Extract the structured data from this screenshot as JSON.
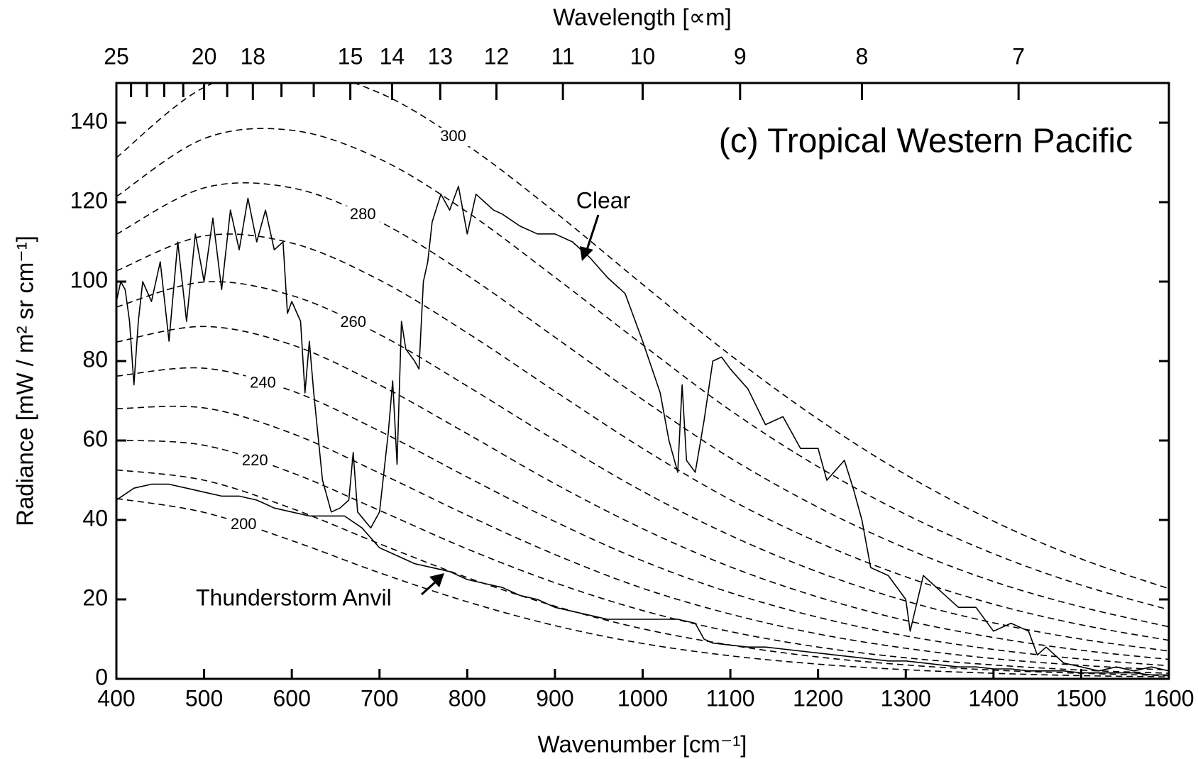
{
  "chart_data": {
    "type": "line",
    "title": "(c) Tropical Western Pacific",
    "x_label": "Wavenumber [cm⁻¹]",
    "y_label": "Radiance [mW / m² sr cm⁻¹]",
    "x2_label": "Wavelength [∝m]",
    "xlim": [
      400,
      1600
    ],
    "ylim": [
      0,
      150
    ],
    "xticks": [
      400,
      500,
      600,
      700,
      800,
      900,
      1000,
      1100,
      1200,
      1300,
      1400,
      1500,
      1600
    ],
    "yticks": [
      0,
      20,
      40,
      60,
      80,
      100,
      120,
      140
    ],
    "x2ticks": [
      {
        "value": 400,
        "label": "25"
      },
      {
        "value": 500,
        "label": "20"
      },
      {
        "value": 555.6,
        "label": "18"
      },
      {
        "value": 666.7,
        "label": "15"
      },
      {
        "value": 714.3,
        "label": "14"
      },
      {
        "value": 769.2,
        "label": "13"
      },
      {
        "value": 833.3,
        "label": "12"
      },
      {
        "value": 909.1,
        "label": "11"
      },
      {
        "value": 1000,
        "label": "10"
      },
      {
        "value": 1111.1,
        "label": "9"
      },
      {
        "value": 1250,
        "label": "8"
      },
      {
        "value": 1428.6,
        "label": "7"
      }
    ],
    "x2minorticks": [
      416.7,
      434.8,
      454.5,
      476.2,
      526.3,
      588.2,
      625
    ],
    "series": [
      {
        "name": "Clear",
        "color": "#000000",
        "x": [
          400,
          405,
          410,
          415,
          420,
          425,
          430,
          440,
          450,
          460,
          470,
          480,
          490,
          500,
          510,
          520,
          530,
          540,
          550,
          560,
          570,
          580,
          590,
          595,
          600,
          610,
          615,
          620,
          625,
          635,
          645,
          655,
          665,
          670,
          675,
          690,
          700,
          710,
          715,
          720,
          725,
          730,
          740,
          745,
          750,
          755,
          760,
          770,
          780,
          790,
          800,
          810,
          820,
          830,
          840,
          860,
          880,
          900,
          920,
          940,
          960,
          980,
          1000,
          1020,
          1030,
          1040,
          1045,
          1050,
          1060,
          1070,
          1080,
          1090,
          1100,
          1120,
          1140,
          1160,
          1180,
          1200,
          1210,
          1230,
          1240,
          1250,
          1260,
          1280,
          1300,
          1305,
          1320,
          1340,
          1360,
          1380,
          1400,
          1420,
          1440,
          1450,
          1460,
          1480,
          1500,
          1520,
          1540,
          1560,
          1580,
          1600
        ],
        "values": [
          95,
          100,
          98,
          90,
          74,
          90,
          100,
          95,
          105,
          85,
          110,
          90,
          112,
          100,
          116,
          98,
          118,
          108,
          121,
          110,
          118,
          108,
          110,
          92,
          95,
          90,
          72,
          85,
          72,
          50,
          42,
          43,
          45,
          57,
          42,
          38,
          42,
          62,
          75,
          54,
          90,
          83,
          80,
          78,
          100,
          105,
          115,
          122,
          118,
          124,
          112,
          122,
          120,
          118,
          117,
          114,
          112,
          112,
          110,
          106,
          101,
          97,
          85,
          72,
          60,
          52,
          74,
          55,
          52,
          65,
          80,
          81,
          78,
          73,
          64,
          66,
          58,
          58,
          50,
          55,
          48,
          40,
          28,
          26,
          20,
          12,
          26,
          22,
          18,
          18,
          12,
          14,
          12,
          6,
          8,
          4,
          3,
          2,
          3,
          2,
          3,
          2
        ]
      },
      {
        "name": "Thunderstorm Anvil",
        "color": "#000000",
        "x": [
          400,
          420,
          440,
          460,
          480,
          500,
          520,
          540,
          560,
          580,
          600,
          620,
          640,
          660,
          680,
          700,
          720,
          740,
          760,
          780,
          800,
          820,
          840,
          860,
          880,
          900,
          920,
          940,
          960,
          980,
          1000,
          1020,
          1040,
          1060,
          1070,
          1080,
          1100,
          1120,
          1140,
          1160,
          1180,
          1200,
          1220,
          1240,
          1260,
          1280,
          1300,
          1320,
          1340,
          1360,
          1380,
          1400,
          1420,
          1440,
          1460,
          1480,
          1500,
          1520,
          1540,
          1560,
          1580,
          1600
        ],
        "values": [
          45,
          48,
          49,
          49,
          48,
          47,
          46,
          46,
          45,
          43,
          42,
          41,
          41,
          41,
          38,
          33,
          31,
          29,
          28,
          27,
          25,
          24,
          23,
          21,
          20,
          18,
          17,
          16,
          15,
          15,
          15,
          15,
          15,
          14,
          10,
          9,
          8.5,
          8,
          8,
          7.5,
          7,
          6.5,
          6,
          5.5,
          5,
          4.5,
          4.5,
          4,
          3.5,
          3,
          3,
          2.5,
          2.5,
          2,
          2,
          2,
          1.5,
          1.5,
          1.5,
          1.5,
          1,
          1
        ]
      }
    ],
    "reference_curves": {
      "color": "#000000",
      "dashed": true,
      "x": [
        400,
        500,
        600,
        700,
        800,
        900,
        1000,
        1100,
        1200,
        1300,
        1400,
        1500,
        1600
      ],
      "series": [
        {
          "label": "300",
          "values": [
            131.2,
            148.9,
            153.3,
            147.5,
            134.3,
            117.5,
            99.3,
            81.5,
            65.4,
            51.4,
            39.7,
            30.2,
            22.7
          ]
        },
        {
          "values": [
            121.4,
            136.0,
            138.1,
            130.9,
            117.5,
            101.1,
            84.1,
            67.6,
            53.4,
            41.4,
            31.5,
            23.6,
            17.4
          ]
        },
        {
          "label": "280",
          "values": [
            111.9,
            123.6,
            123.6,
            115.1,
            101.6,
            86.0,
            70.3,
            55.6,
            43.2,
            32.9,
            24.5,
            18.1,
            13.1
          ]
        },
        {
          "values": [
            102.7,
            111.5,
            109.7,
            100.4,
            87.1,
            72.4,
            58.0,
            45.1,
            34.4,
            25.7,
            18.8,
            13.6,
            9.7
          ]
        },
        {
          "label": "260",
          "values": [
            93.6,
            99.9,
            96.5,
            86.7,
            73.7,
            60.1,
            47.2,
            36.1,
            26.9,
            19.6,
            14.1,
            10.0,
            7.0
          ]
        },
        {
          "values": [
            84.8,
            88.7,
            84.1,
            74.0,
            61.7,
            49.1,
            37.8,
            28.2,
            20.6,
            14.7,
            10.4,
            7.2,
            4.9
          ]
        },
        {
          "label": "240",
          "values": [
            76.2,
            78.2,
            72.5,
            62.4,
            50.8,
            39.6,
            29.7,
            21.7,
            15.5,
            10.8,
            7.4,
            5.0,
            3.3
          ]
        },
        {
          "values": [
            68.0,
            68.2,
            61.8,
            51.8,
            41.2,
            31.3,
            22.8,
            16.3,
            11.3,
            7.7,
            5.1,
            3.4,
            2.2
          ]
        },
        {
          "label": "220",
          "values": [
            60.1,
            58.8,
            51.9,
            42.4,
            32.7,
            24.2,
            17.2,
            11.9,
            8.0,
            5.3,
            3.5,
            2.2,
            1.4
          ]
        },
        {
          "values": [
            52.6,
            50.0,
            42.9,
            34.0,
            25.5,
            18.3,
            12.6,
            8.5,
            5.5,
            3.5,
            2.2,
            1.4,
            0.8
          ]
        },
        {
          "label": "200",
          "values": [
            45.4,
            41.9,
            34.8,
            26.7,
            19.4,
            13.4,
            8.9,
            5.8,
            3.7,
            2.3,
            1.4,
            0.8,
            0.5
          ]
        }
      ]
    }
  }
}
